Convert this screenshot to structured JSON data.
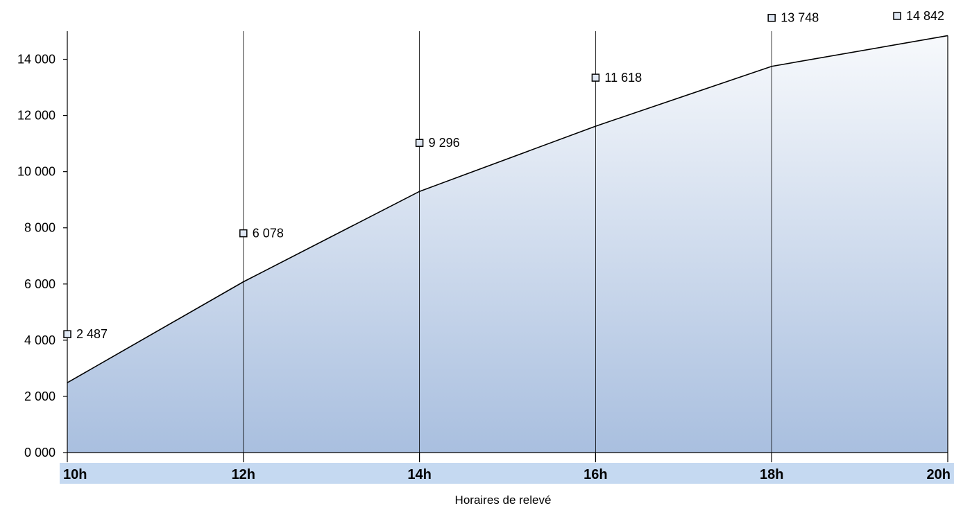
{
  "chart_data": {
    "type": "area",
    "title": "",
    "xlabel": "Horaires de relevé",
    "ylabel": "",
    "categories": [
      "10h",
      "12h",
      "14h",
      "16h",
      "18h",
      "20h"
    ],
    "values": [
      2487,
      6078,
      9296,
      11618,
      13748,
      14842
    ],
    "data_labels": [
      "2 487",
      "6 078",
      "9 296",
      "11 618",
      "13 748",
      "14 842"
    ],
    "yticks": [
      0,
      2000,
      4000,
      6000,
      8000,
      10000,
      12000,
      14000
    ],
    "ytick_labels": [
      "0 000",
      "2 000",
      "4 000",
      "6 000",
      "8 000",
      "10 000",
      "12 000",
      "14 000"
    ],
    "ylim": [
      0,
      15000
    ],
    "grid": false,
    "legend": "none",
    "colors": {
      "fill_top": "#f7f9fc",
      "fill_bottom": "#a9bfdf",
      "line": "#000000",
      "category_band": "#c5d9f1",
      "marker_fill": "#dfe7f3"
    }
  }
}
